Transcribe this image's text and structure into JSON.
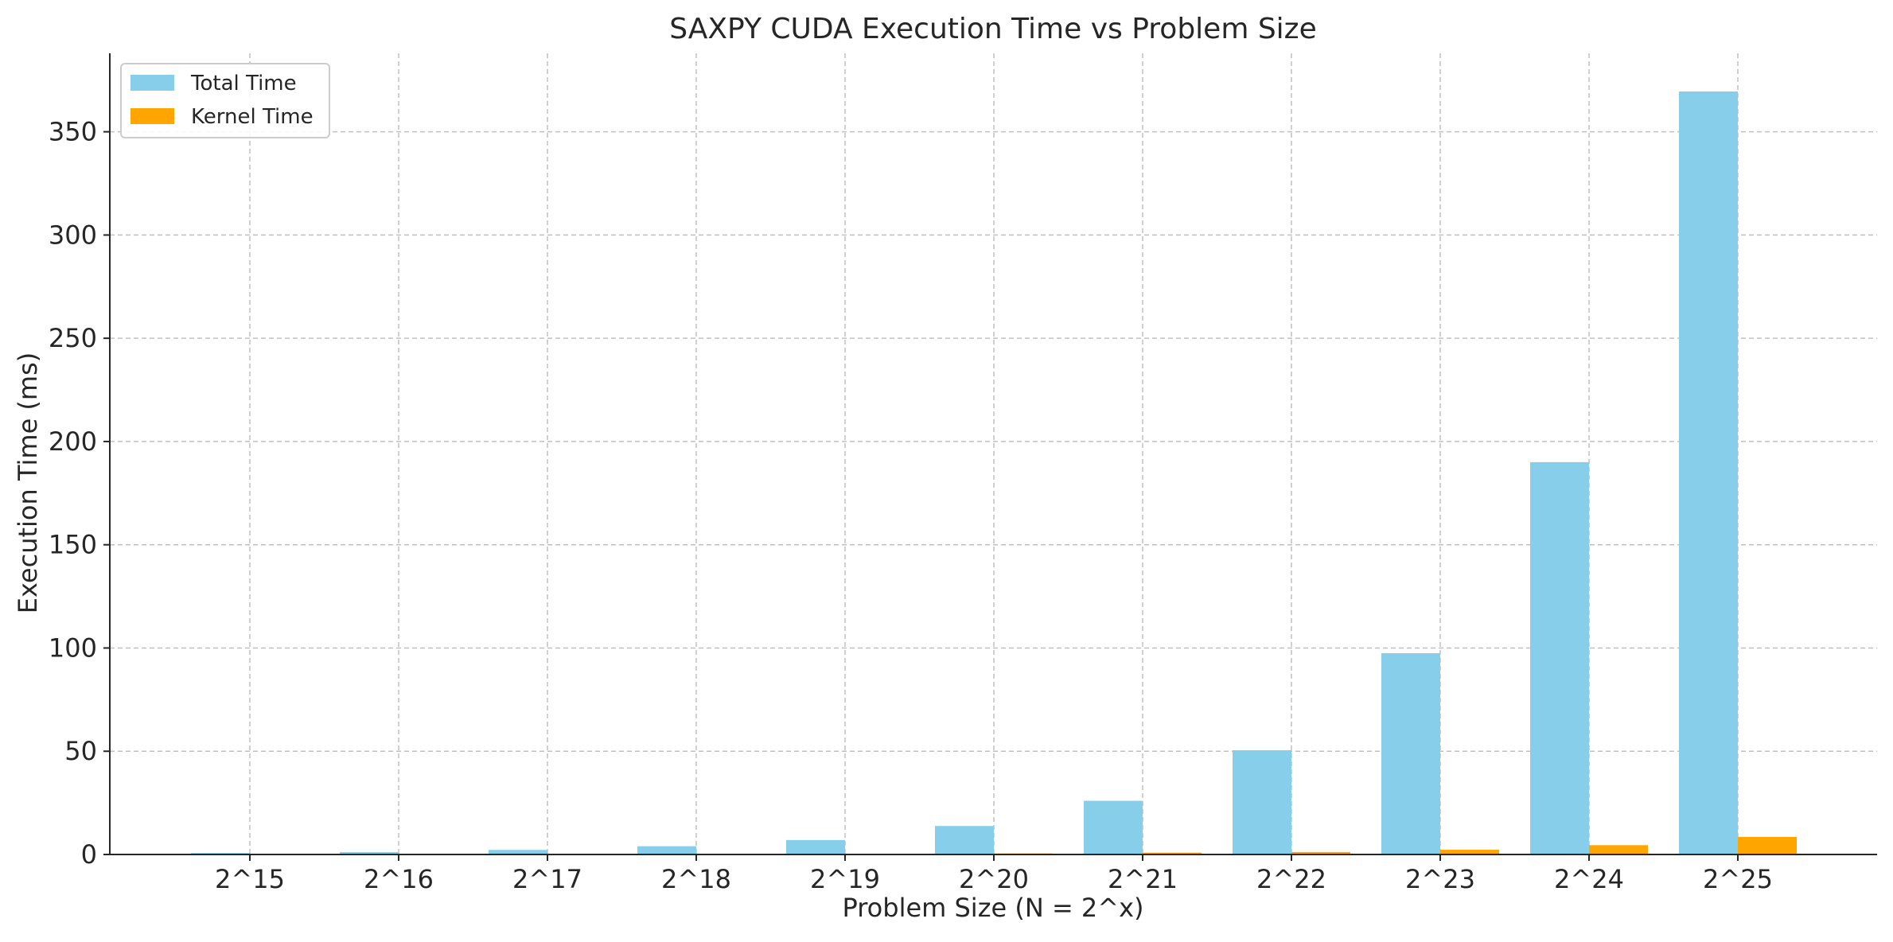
{
  "chart_data": {
    "type": "bar",
    "title": "SAXPY CUDA Execution Time vs Problem Size",
    "xlabel": "Problem Size (N = 2^x)",
    "ylabel": "Execution Time (ms)",
    "categories": [
      "2^15",
      "2^16",
      "2^17",
      "2^18",
      "2^19",
      "2^20",
      "2^21",
      "2^22",
      "2^23",
      "2^24",
      "2^25"
    ],
    "series": [
      {
        "name": "Total Time",
        "color": "#87ceeb",
        "values": [
          0.7,
          1.2,
          2.2,
          4.0,
          7.0,
          13.8,
          26.0,
          50.5,
          97.5,
          190.0,
          369.5
        ]
      },
      {
        "name": "Kernel Time",
        "color": "#ffa500",
        "values": [
          0.02,
          0.04,
          0.08,
          0.15,
          0.28,
          0.5,
          0.9,
          1.2,
          2.3,
          4.5,
          8.5
        ]
      }
    ],
    "ylim": [
      0,
      388
    ],
    "yticks": [
      0,
      50,
      100,
      150,
      200,
      250,
      300,
      350
    ],
    "grid": true,
    "legend": "top-left"
  }
}
